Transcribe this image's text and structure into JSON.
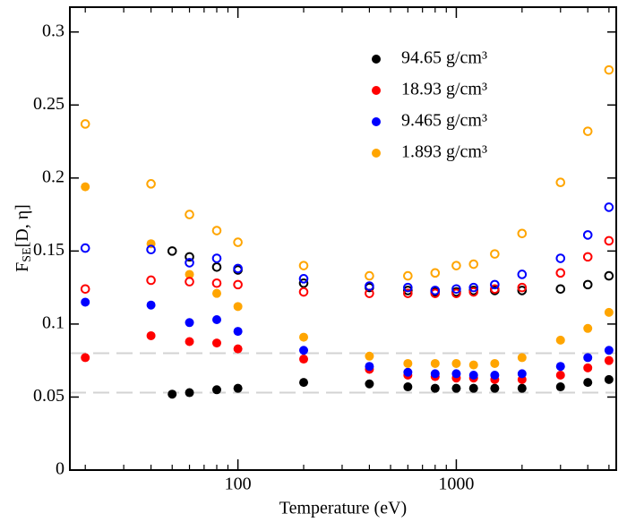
{
  "chart_data": {
    "type": "scatter",
    "xlabel": "Temperature (eV)",
    "ylabel": {
      "main": "F",
      "sub": "SE",
      "rest": "[D, η]"
    },
    "xscale": "log",
    "xlim": [
      17,
      5400
    ],
    "xticks": [
      100,
      1000
    ],
    "xminorticks": [
      20,
      30,
      40,
      50,
      60,
      70,
      80,
      90,
      200,
      300,
      400,
      500,
      600,
      700,
      800,
      900,
      2000,
      3000,
      4000,
      5000
    ],
    "ylim": [
      0,
      0.317
    ],
    "yticks": [
      0,
      0.05,
      0.1,
      0.15,
      0.2,
      0.25,
      0.3
    ],
    "hlines": [
      0.053,
      0.08
    ],
    "hline_color": "#d3d3d3",
    "legend": "upper right",
    "series": [
      {
        "name": "94.65 g/cm³",
        "color": "#000000",
        "marker": "filled",
        "x": [
          50,
          60,
          80,
          100,
          200,
          400,
          600,
          800,
          1000,
          1200,
          1500,
          2000,
          3000,
          4000,
          5000
        ],
        "values": [
          0.052,
          0.053,
          0.055,
          0.056,
          0.06,
          0.059,
          0.057,
          0.056,
          0.056,
          0.056,
          0.056,
          0.056,
          0.057,
          0.06,
          0.062
        ]
      },
      {
        "name": "18.93 g/cm³",
        "color": "#ff0000",
        "marker": "filled",
        "x": [
          20,
          40,
          60,
          80,
          100,
          200,
          400,
          600,
          800,
          1000,
          1200,
          1500,
          2000,
          3000,
          4000,
          5000
        ],
        "values": [
          0.077,
          0.092,
          0.088,
          0.087,
          0.083,
          0.076,
          0.069,
          0.065,
          0.064,
          0.063,
          0.063,
          0.062,
          0.062,
          0.065,
          0.07,
          0.075
        ]
      },
      {
        "name": "9.465 g/cm³",
        "color": "#0000ff",
        "marker": "filled",
        "x": [
          20,
          40,
          60,
          80,
          100,
          200,
          400,
          600,
          800,
          1000,
          1200,
          1500,
          2000,
          3000,
          4000,
          5000
        ],
        "values": [
          0.115,
          0.113,
          0.101,
          0.103,
          0.095,
          0.082,
          0.071,
          0.067,
          0.066,
          0.066,
          0.065,
          0.065,
          0.066,
          0.071,
          0.077,
          0.082
        ]
      },
      {
        "name": "1.893 g/cm³",
        "color": "#ffa500",
        "marker": "filled",
        "x": [
          20,
          40,
          60,
          80,
          100,
          200,
          400,
          600,
          800,
          1000,
          1200,
          1500,
          2000,
          3000,
          4000,
          5000
        ],
        "values": [
          0.194,
          0.155,
          0.134,
          0.121,
          0.112,
          0.091,
          0.078,
          0.073,
          0.073,
          0.073,
          0.072,
          0.073,
          0.077,
          0.089,
          0.097,
          0.108
        ]
      },
      {
        "color": "#000000",
        "marker": "open",
        "x": [
          50,
          60,
          80,
          100,
          200,
          400,
          600,
          800,
          1000,
          1200,
          1500,
          2000,
          3000,
          4000,
          5000
        ],
        "values": [
          0.15,
          0.146,
          0.139,
          0.137,
          0.128,
          0.125,
          0.123,
          0.122,
          0.122,
          0.123,
          0.123,
          0.123,
          0.124,
          0.127,
          0.133
        ]
      },
      {
        "color": "#ff0000",
        "marker": "open",
        "x": [
          20,
          40,
          60,
          80,
          100,
          200,
          400,
          600,
          800,
          1000,
          1200,
          1500,
          2000,
          3000,
          4000,
          5000
        ],
        "values": [
          0.124,
          0.13,
          0.129,
          0.128,
          0.127,
          0.122,
          0.121,
          0.121,
          0.121,
          0.121,
          0.122,
          0.124,
          0.125,
          0.135,
          0.146,
          0.157
        ]
      },
      {
        "color": "#0000ff",
        "marker": "open",
        "x": [
          20,
          40,
          60,
          80,
          100,
          200,
          400,
          600,
          800,
          1000,
          1200,
          1500,
          2000,
          3000,
          4000,
          5000
        ],
        "values": [
          0.152,
          0.151,
          0.142,
          0.145,
          0.138,
          0.131,
          0.126,
          0.125,
          0.123,
          0.124,
          0.125,
          0.127,
          0.134,
          0.145,
          0.161,
          0.18
        ]
      },
      {
        "color": "#ffa500",
        "marker": "open",
        "x": [
          20,
          40,
          60,
          80,
          100,
          200,
          400,
          600,
          800,
          1000,
          1200,
          1500,
          2000,
          3000,
          4000,
          5000
        ],
        "values": [
          0.237,
          0.196,
          0.175,
          0.164,
          0.156,
          0.14,
          0.133,
          0.133,
          0.135,
          0.14,
          0.141,
          0.148,
          0.162,
          0.197,
          0.232,
          0.274
        ]
      }
    ]
  }
}
